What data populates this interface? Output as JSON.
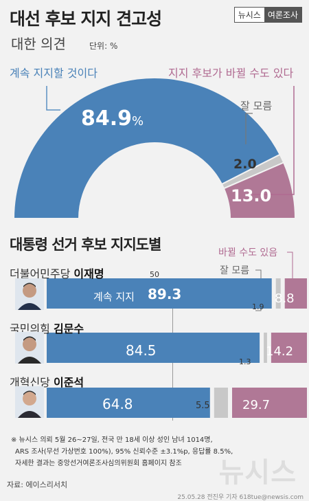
{
  "header": {
    "title": "대선 후보 지지 견고성",
    "subtitle": "대한 의견",
    "unit": "단위: %",
    "brand_left": "뉴시스",
    "brand_right": "여론조사"
  },
  "colors": {
    "blue": "#4a82b8",
    "pink": "#b07896",
    "gray": "#c8c8c8",
    "line_blue": "#5b8fc2",
    "line_pink": "#b06a91"
  },
  "gauge_labels": {
    "keep": "계속 지지할 것이다",
    "may_change": "지지 후보가 바뀔 수도 있다",
    "dont_know": "잘 모름",
    "keep_value": "84.9",
    "keep_pct": "%",
    "dont_know_value": "2.0",
    "may_change_value": "13.0"
  },
  "section2": {
    "title": "대통령 선거 후보 지지도별",
    "legend_may_change": "바뀔 수도 있음",
    "legend_dont_know": "잘 모름",
    "axis_mark": "50",
    "keep_prefix": "계속 지지",
    "candidates": [
      {
        "party": "더불어민주당",
        "name": "이재명",
        "keep": "89.3",
        "dont_know": "1.9",
        "may_change": "8.8"
      },
      {
        "party": "국민의힘",
        "name": "김문수",
        "keep": "84.5",
        "dont_know": "1.3",
        "may_change": "14.2"
      },
      {
        "party": "개혁신당",
        "name": "이준석",
        "keep": "64.8",
        "dont_know": "5.5",
        "may_change": "29.7"
      }
    ]
  },
  "footer": {
    "note1": "※ 뉴시스 의뢰 5월 26~27일, 전국 만 18세 이상 성인 남녀 1014명,",
    "note2": "ARS 조사(무선 가상번호 100%), 95% 신뢰수준 ±3.1%p, 응답률 8.5%,",
    "note3": "자세한 결과는 중앙선거여론조사심의위원회 홈페이지 참조",
    "source": "자료: 에이스리서치",
    "credit": "25.05.28 전진우 기자 618tue@newsis.com",
    "watermark": "뉴시스"
  },
  "chart_data": [
    {
      "type": "pie",
      "title": "대선 후보 지지 견고성",
      "subtitle": "대한 의견",
      "unit": "%",
      "categories": [
        "계속 지지할 것이다",
        "잘 모름",
        "지지 후보가 바뀔 수도 있다"
      ],
      "values": [
        84.9,
        2.0,
        13.0
      ]
    },
    {
      "type": "bar",
      "title": "대통령 선거 후보 지지도별",
      "categories": [
        "더불어민주당 이재명",
        "국민의힘 김문수",
        "개혁신당 이준석"
      ],
      "series": [
        {
          "name": "계속 지지",
          "values": [
            89.3,
            84.5,
            64.8
          ]
        },
        {
          "name": "잘 모름",
          "values": [
            1.9,
            1.3,
            5.5
          ]
        },
        {
          "name": "바뀔 수도 있음",
          "values": [
            8.8,
            14.2,
            29.7
          ]
        }
      ],
      "stacked": true,
      "xlim": [
        0,
        100
      ]
    }
  ]
}
